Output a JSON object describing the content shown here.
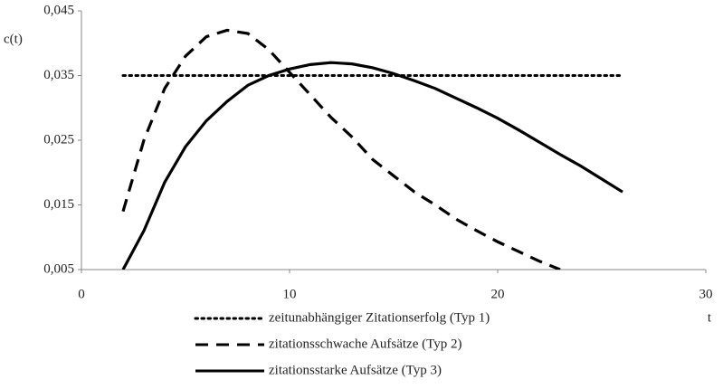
{
  "chart_data": {
    "type": "line",
    "y_label": "c(t)",
    "x_label": "t",
    "x": [
      2,
      3,
      4,
      5,
      6,
      7,
      8,
      9,
      10,
      11,
      12,
      13,
      14,
      15,
      16,
      17,
      18,
      19,
      20,
      21,
      22,
      23,
      24,
      25,
      26
    ],
    "series": [
      {
        "name": "zeitunabhängiger Zitationserfolg (Typ 1)",
        "color": "#000000",
        "dash": "dotted",
        "values": [
          0.035,
          0.035,
          0.035,
          0.035,
          0.035,
          0.035,
          0.035,
          0.035,
          0.035,
          0.035,
          0.035,
          0.035,
          0.035,
          0.035,
          0.035,
          0.035,
          0.035,
          0.035,
          0.035,
          0.035,
          0.035,
          0.035,
          0.035,
          0.035,
          0.035
        ]
      },
      {
        "name": "zitationsschwache Aufsätze (Typ 2)",
        "color": "#000000",
        "dash": "dashed",
        "values": [
          0.014,
          0.025,
          0.033,
          0.038,
          0.041,
          0.042,
          0.0415,
          0.039,
          0.0355,
          0.032,
          0.0285,
          0.0255,
          0.022,
          0.0195,
          0.017,
          0.015,
          0.0128,
          0.011,
          0.0093,
          0.0078,
          0.0063,
          0.005,
          null,
          null,
          null
        ]
      },
      {
        "name": "zitationsstarke Aufsätze (Typ 3)",
        "color": "#000000",
        "dash": "solid",
        "values": [
          0.005,
          0.011,
          0.0185,
          0.024,
          0.028,
          0.031,
          0.0335,
          0.035,
          0.036,
          0.0367,
          0.037,
          0.0368,
          0.0362,
          0.0353,
          0.0342,
          0.033,
          0.0315,
          0.03,
          0.0284,
          0.0266,
          0.0247,
          0.0228,
          0.021,
          0.019,
          0.017
        ]
      }
    ],
    "xlim": [
      0,
      30
    ],
    "xticks": [
      0,
      10,
      20,
      30
    ],
    "ylim": [
      0.005,
      0.045
    ],
    "yticks": [
      {
        "value": 0.005,
        "label": "0,005"
      },
      {
        "value": 0.015,
        "label": "0,015"
      },
      {
        "value": 0.025,
        "label": "0,025"
      },
      {
        "value": 0.035,
        "label": "0,035"
      },
      {
        "value": 0.045,
        "label": "0,045"
      }
    ],
    "grid": false,
    "legend": "bottom"
  }
}
